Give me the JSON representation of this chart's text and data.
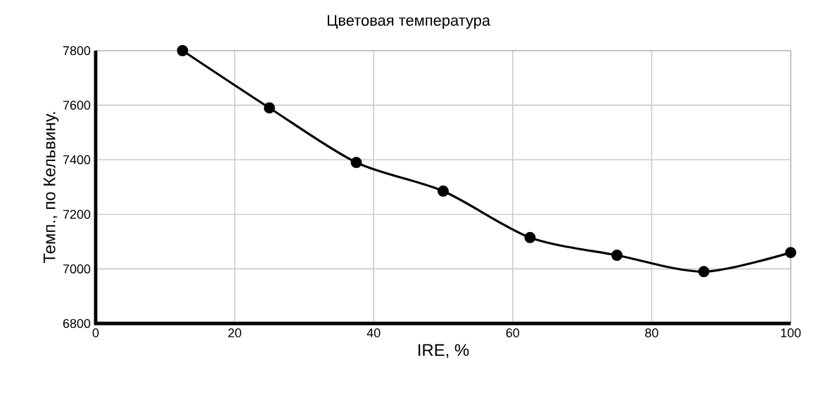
{
  "chart_data": {
    "type": "line",
    "title": "Цветовая температура",
    "xlabel": "IRE, %",
    "ylabel": "Темп., по Кельвину.",
    "x": [
      12.5,
      25,
      37.5,
      50,
      62.5,
      75,
      87.5,
      100
    ],
    "series": [
      {
        "color": "#000000",
        "values": [
          7800,
          7590,
          7390,
          7285,
          7115,
          7050,
          6990,
          7060
        ]
      }
    ],
    "xlim": [
      0,
      100
    ],
    "xticks": [
      0,
      20,
      40,
      60,
      80,
      100
    ],
    "ylim": [
      6800,
      7800
    ],
    "yticks": [
      6800,
      7000,
      7200,
      7400,
      7600,
      7800
    ],
    "grid": true,
    "marker": "circle",
    "line_style": "solid"
  }
}
